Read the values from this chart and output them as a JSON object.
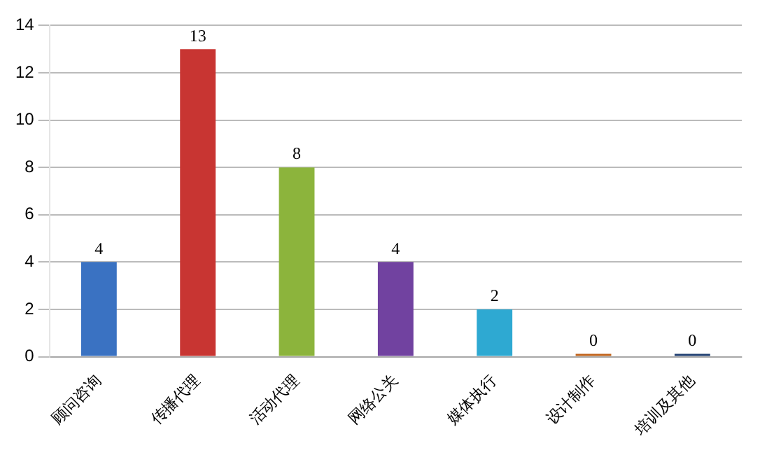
{
  "chart_data": {
    "type": "bar",
    "categories": [
      "顾问咨询",
      "传播代理",
      "活动代理",
      "网络公关",
      "媒体执行",
      "设计制作",
      "培训及其他"
    ],
    "values": [
      4,
      13,
      8,
      4,
      2,
      0,
      0
    ],
    "colors": [
      "#3a72c2",
      "#c83532",
      "#8cb43c",
      "#7142a0",
      "#2ea9d2",
      "#c0621a",
      "#1f3e70"
    ],
    "ylim": [
      0,
      14
    ],
    "yticks": [
      0,
      2,
      4,
      6,
      8,
      10,
      12,
      14
    ],
    "grid": "y",
    "data_labels": true,
    "legend": false
  }
}
